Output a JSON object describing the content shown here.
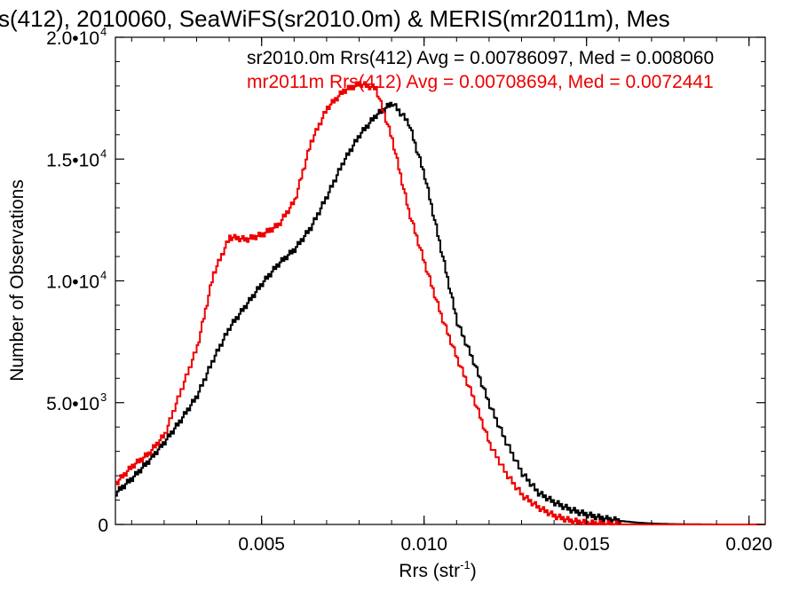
{
  "chart_data": {
    "type": "line",
    "title": "s(412), 2010060, SeaWiFS(sr2010.0m) & MERIS(mr2011m), Mes",
    "xlabel": "Rrs (str",
    "xlabel_sup": "-1",
    "xlabel_end": ")",
    "ylabel": "Number of Observations",
    "xlim": [
      0.0005,
      0.0205
    ],
    "ylim": [
      0,
      20000
    ],
    "xticks": [
      {
        "value": 0.005,
        "label": "0.005"
      },
      {
        "value": 0.01,
        "label": "0.010"
      },
      {
        "value": 0.015,
        "label": "0.015"
      },
      {
        "value": 0.02,
        "label": "0.020"
      }
    ],
    "yticks": [
      {
        "value": 0,
        "label": "0",
        "exp": ""
      },
      {
        "value": 5000,
        "label": "5.0•10",
        "exp": "3"
      },
      {
        "value": 10000,
        "label": "1.0•10",
        "exp": "4"
      },
      {
        "value": 15000,
        "label": "1.5•10",
        "exp": "4"
      },
      {
        "value": 20000,
        "label": "2.0•10",
        "exp": "4"
      }
    ],
    "annotations": [
      {
        "text": "sr2010.0m Rrs(412) Avg = 0.00786097, Med = 0.008060",
        "color": "#000000"
      },
      {
        "text": "mr2011m Rrs(412) Avg = 0.00708694, Med = 0.0072441",
        "color": "#ee0000"
      }
    ],
    "series": [
      {
        "color": "#000000",
        "points": [
          [
            0.0005,
            1300
          ],
          [
            0.001,
            1900
          ],
          [
            0.0015,
            2600
          ],
          [
            0.002,
            3400
          ],
          [
            0.0025,
            4300
          ],
          [
            0.003,
            5300
          ],
          [
            0.0035,
            6800
          ],
          [
            0.004,
            8100
          ],
          [
            0.0045,
            9000
          ],
          [
            0.005,
            9900
          ],
          [
            0.0055,
            10700
          ],
          [
            0.006,
            11300
          ],
          [
            0.0065,
            12200
          ],
          [
            0.007,
            13500
          ],
          [
            0.0075,
            14900
          ],
          [
            0.008,
            16000
          ],
          [
            0.0085,
            16800
          ],
          [
            0.009,
            17300
          ],
          [
            0.0095,
            16500
          ],
          [
            0.01,
            14300
          ],
          [
            0.0105,
            11300
          ],
          [
            0.011,
            8300
          ],
          [
            0.0115,
            6700
          ],
          [
            0.012,
            4900
          ],
          [
            0.0125,
            3400
          ],
          [
            0.013,
            2100
          ],
          [
            0.0135,
            1300
          ],
          [
            0.014,
            900
          ],
          [
            0.0145,
            600
          ],
          [
            0.015,
            400
          ],
          [
            0.0155,
            250
          ],
          [
            0.016,
            150
          ],
          [
            0.0165,
            80
          ],
          [
            0.017,
            40
          ],
          [
            0.0175,
            20
          ],
          [
            0.018,
            10
          ],
          [
            0.019,
            0
          ],
          [
            0.0205,
            0
          ]
        ]
      },
      {
        "color": "#ee0000",
        "points": [
          [
            0.0005,
            1700
          ],
          [
            0.001,
            2400
          ],
          [
            0.0015,
            2900
          ],
          [
            0.002,
            3700
          ],
          [
            0.0025,
            5500
          ],
          [
            0.003,
            7300
          ],
          [
            0.0035,
            10300
          ],
          [
            0.004,
            11800
          ],
          [
            0.0045,
            11700
          ],
          [
            0.005,
            11900
          ],
          [
            0.0055,
            12300
          ],
          [
            0.006,
            13300
          ],
          [
            0.0065,
            15700
          ],
          [
            0.007,
            17100
          ],
          [
            0.0075,
            17800
          ],
          [
            0.008,
            18100
          ],
          [
            0.0085,
            17900
          ],
          [
            0.009,
            15800
          ],
          [
            0.0095,
            12900
          ],
          [
            0.01,
            10700
          ],
          [
            0.0105,
            8600
          ],
          [
            0.011,
            6800
          ],
          [
            0.0115,
            5200
          ],
          [
            0.012,
            3300
          ],
          [
            0.0125,
            2100
          ],
          [
            0.013,
            1200
          ],
          [
            0.0135,
            700
          ],
          [
            0.014,
            350
          ],
          [
            0.0145,
            150
          ],
          [
            0.015,
            60
          ],
          [
            0.0155,
            20
          ],
          [
            0.016,
            5
          ],
          [
            0.017,
            0
          ],
          [
            0.0205,
            0
          ]
        ]
      }
    ]
  }
}
